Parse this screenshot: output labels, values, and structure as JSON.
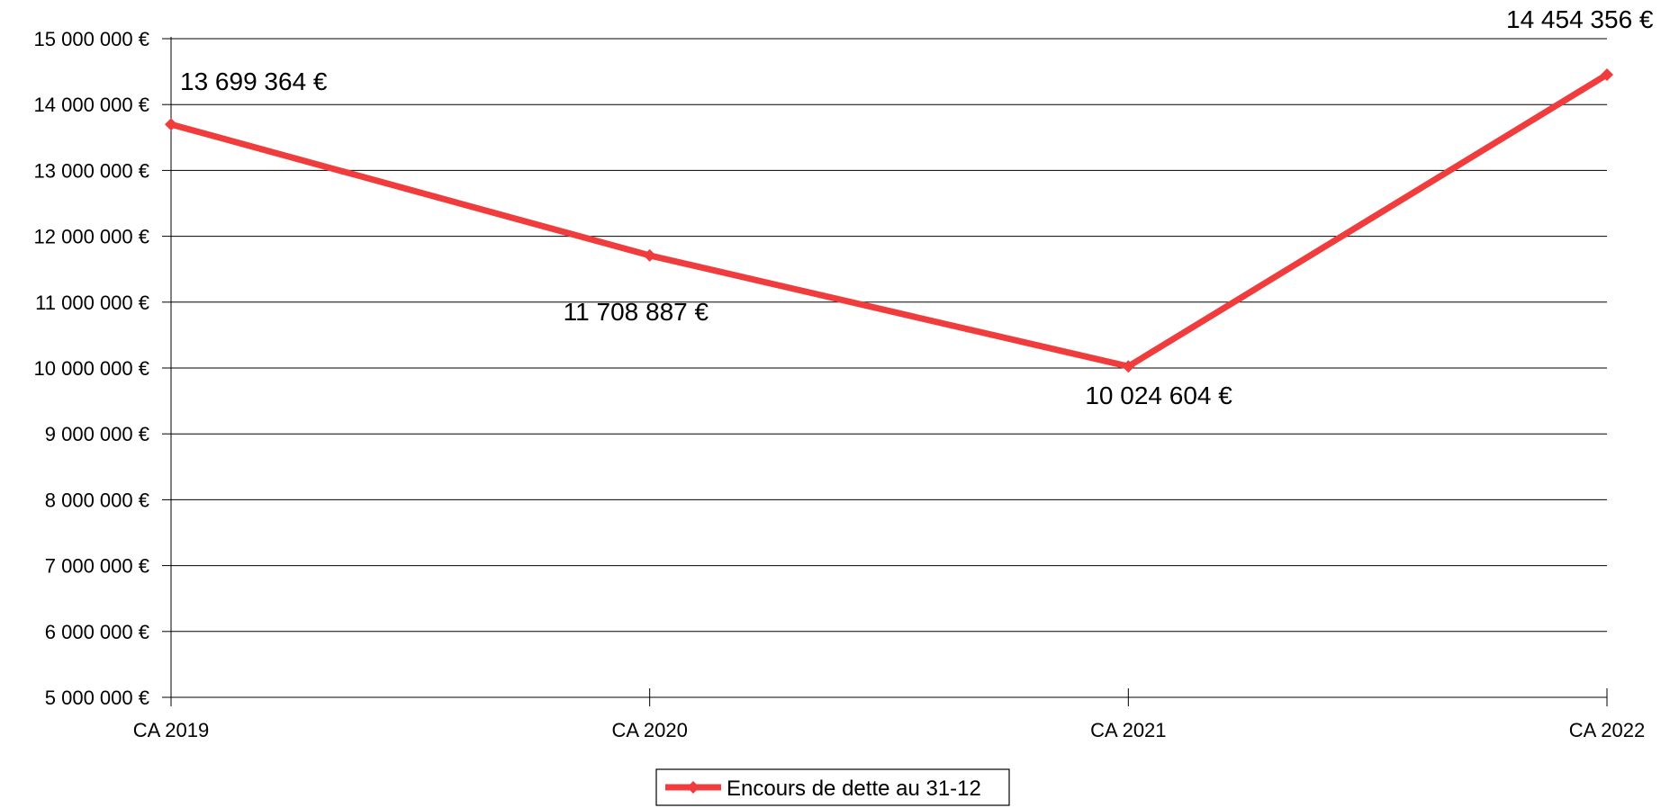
{
  "chart_data": {
    "type": "line",
    "categories": [
      "CA 2019",
      "CA 2020",
      "CA 2021",
      "CA 2022"
    ],
    "series": [
      {
        "name": "Encours de dette au 31-12",
        "values": [
          13699364,
          11708887,
          10024604,
          14454356
        ],
        "data_labels": [
          "13 699 364 €",
          "11 708 887 €",
          "10 024 604 €",
          "14 454 356 €"
        ],
        "color": "#f03c3c",
        "marker": "diamond"
      }
    ],
    "ylim": [
      5000000,
      15000000
    ],
    "y_ticks": [
      5000000,
      6000000,
      7000000,
      8000000,
      9000000,
      10000000,
      11000000,
      12000000,
      13000000,
      14000000,
      15000000
    ],
    "y_tick_labels": [
      "5 000 000 €",
      "6 000 000 €",
      "7 000 000 €",
      "8 000 000 €",
      "9 000 000 €",
      "10 000 000 €",
      "11 000 000 €",
      "12 000 000 €",
      "13 000 000 €",
      "14 000 000 €",
      "15 000 000 €"
    ],
    "grid": true,
    "legend": "bottom-center"
  }
}
